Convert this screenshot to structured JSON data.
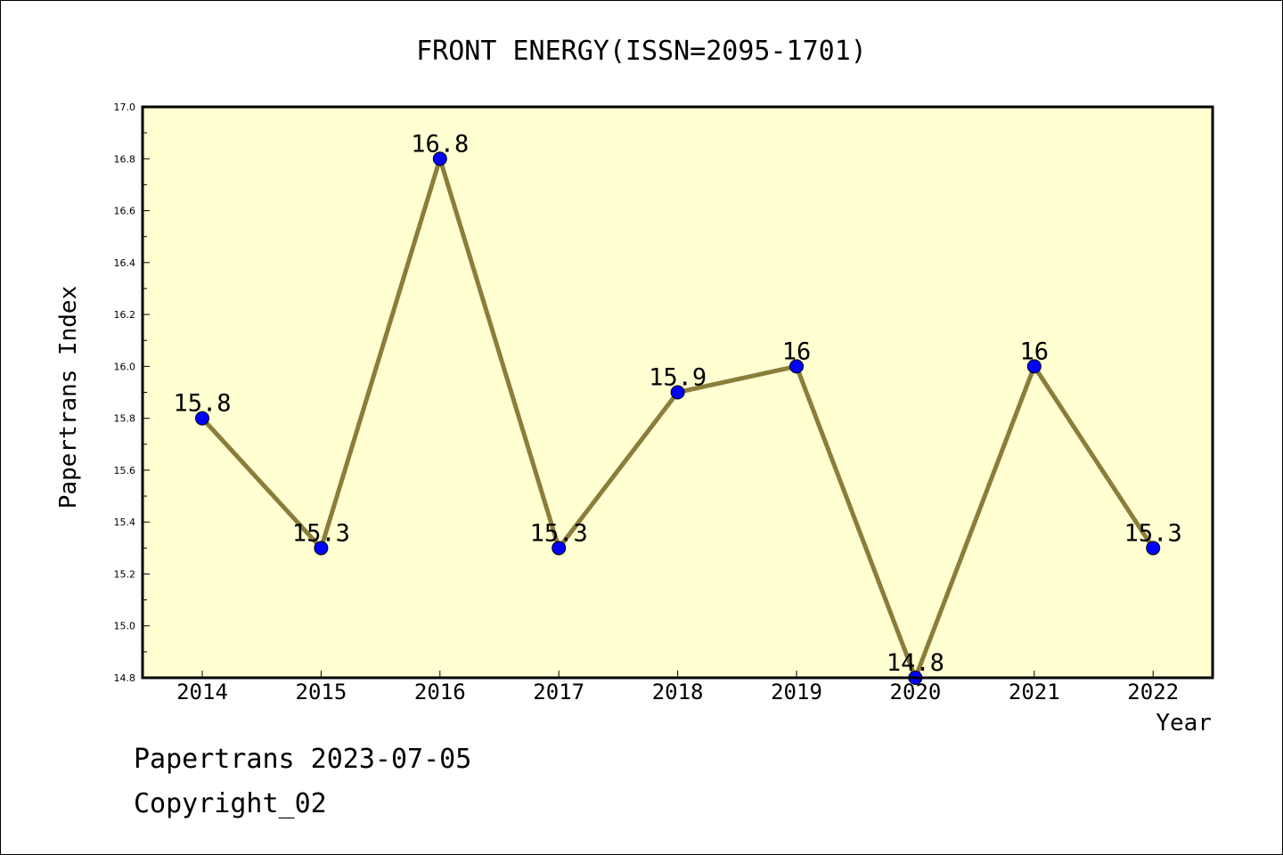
{
  "chart_data": {
    "type": "line",
    "title": "FRONT ENERGY(ISSN=2095-1701)",
    "xlabel": "Year",
    "ylabel": "Papertrans Index",
    "categories": [
      "2014",
      "2015",
      "2016",
      "2017",
      "2018",
      "2019",
      "2020",
      "2021",
      "2022"
    ],
    "series": [
      {
        "values": [
          15.8,
          15.3,
          16.8,
          15.3,
          15.9,
          16.0,
          14.8,
          16.0,
          15.3
        ],
        "data_labels": [
          "15.8",
          "15.3",
          "16.8",
          "15.3",
          "15.9",
          "16",
          "14.8",
          "16",
          "15.3"
        ],
        "line_color": "#8b7d3a",
        "marker_color": "#0000ff"
      }
    ],
    "ylim": [
      14.8,
      17.0
    ],
    "yticks": [
      "14.8",
      "15.0",
      "15.2",
      "15.4",
      "15.6",
      "15.8",
      "16.0",
      "16.2",
      "16.4",
      "16.6",
      "16.8",
      "17.0"
    ],
    "plot_background": "#ffffd2",
    "grid": false,
    "legend": "none"
  },
  "footer": {
    "line1": "Papertrans 2023-07-05",
    "line2": "Copyright_02"
  }
}
